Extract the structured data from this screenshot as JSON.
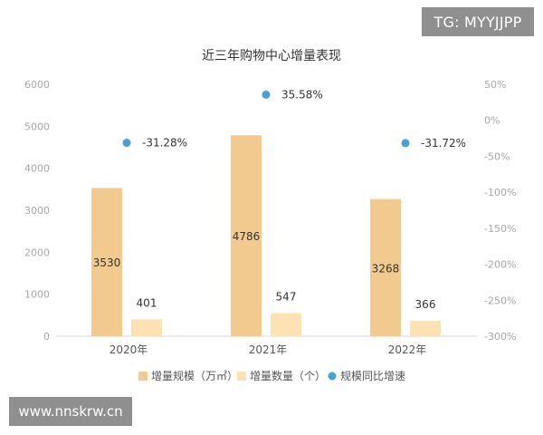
{
  "badges": {
    "top_right": "TG: MYYJJPP",
    "bottom_left": "www.nnskrw.cn"
  },
  "chart_data": {
    "type": "bar",
    "title": "近三年购物中心增量表现",
    "categories": [
      "2020年",
      "2021年",
      "2022年"
    ],
    "y_left": {
      "ticks": [
        "0",
        "1000",
        "2000",
        "3000",
        "4000",
        "5000",
        "6000"
      ],
      "range": [
        0,
        6000
      ]
    },
    "y_right": {
      "ticks": [
        "50%",
        "0%",
        "-50%",
        "-100%",
        "-150%",
        "-200%",
        "-250%",
        "-300%"
      ],
      "range": [
        -300,
        50
      ]
    },
    "series": [
      {
        "name": "增量规模（万㎡）",
        "type": "bar",
        "axis": "left",
        "color": "#f2c98f",
        "values": [
          3530,
          4786,
          3268
        ],
        "labels": [
          "3530",
          "4786",
          "3268"
        ]
      },
      {
        "name": "增量数量（个）",
        "type": "bar",
        "axis": "left",
        "color": "#fde2b3",
        "values": [
          401,
          547,
          366
        ],
        "labels": [
          "401",
          "547",
          "366"
        ]
      },
      {
        "name": "规模同比增速",
        "type": "scatter",
        "axis": "right",
        "color": "#4a9fd8",
        "values": [
          -31.28,
          35.58,
          -31.72
        ],
        "labels": [
          "-31.28%",
          "35.58%",
          "-31.72%"
        ]
      }
    ],
    "legend_position": "bottom",
    "grid": false
  }
}
